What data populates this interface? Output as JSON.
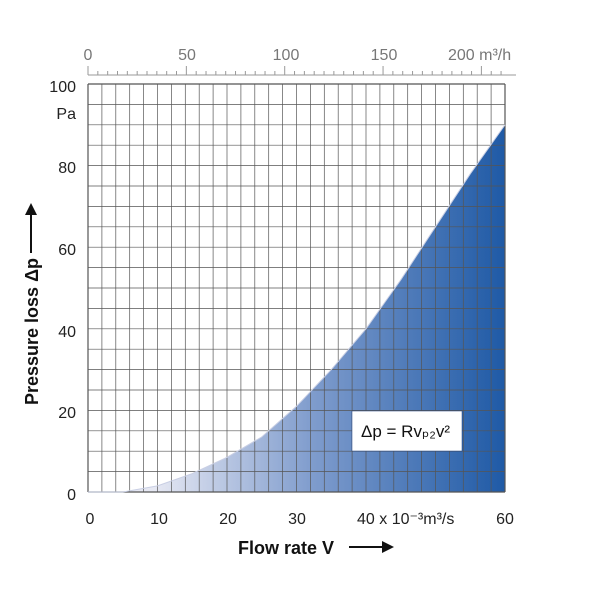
{
  "chart_data": {
    "type": "area",
    "xlabel": "Flow rate V",
    "ylabel": "Pressure loss Δp",
    "xlim": [
      0,
      60
    ],
    "ylim": [
      0,
      100
    ],
    "x_ticks": [
      "0",
      "10",
      "20",
      "30",
      "40 x 10⁻³m³/s",
      "60"
    ],
    "y_ticks": [
      "0",
      "20",
      "40",
      "60",
      "80",
      "100"
    ],
    "y_unit": "Pa",
    "top_axis": {
      "xlim": [
        0,
        212
      ],
      "ticks": [
        "0",
        "50",
        "100",
        "150",
        "200 m³/h"
      ]
    },
    "grid": true,
    "series": [
      {
        "x": [
          0,
          5,
          10,
          15,
          20,
          25,
          30,
          35,
          40,
          45,
          50,
          55,
          60
        ],
        "y": [
          0,
          0,
          1.5,
          4.5,
          8.5,
          13.5,
          21,
          30,
          40,
          52,
          65,
          78,
          90
        ]
      }
    ],
    "formula": "Δp = Rvₚ₂v²",
    "colors": {
      "fill_light": "#dfe3f1",
      "fill_dark": "#1f5aa6",
      "grid": "#555555",
      "arrow": "#111111"
    }
  }
}
